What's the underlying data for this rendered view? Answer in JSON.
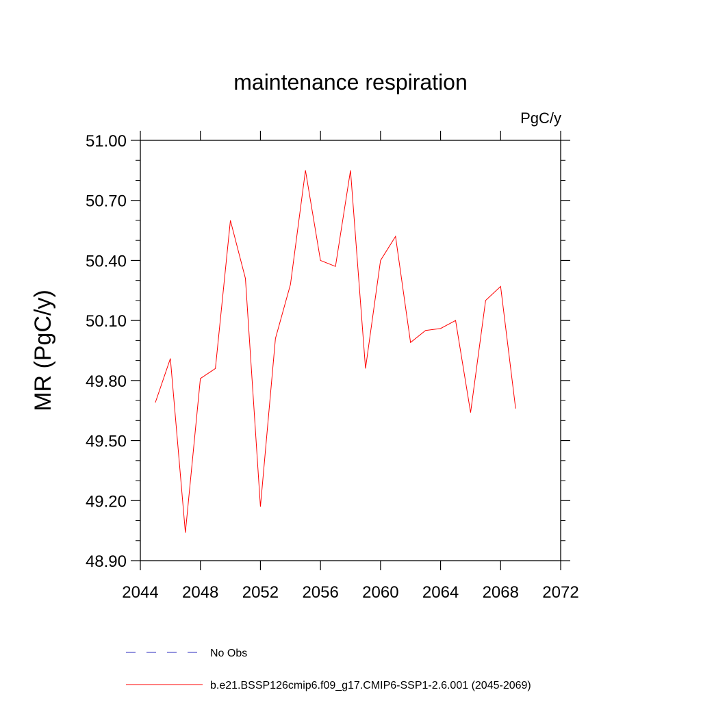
{
  "chart_data": {
    "type": "line",
    "title": "maintenance respiration",
    "units": "PgC/y",
    "ylabel": "MR  (PgC/y)",
    "xlim": [
      2044,
      2072
    ],
    "ylim": [
      48.9,
      51.0
    ],
    "x_ticks": [
      "2044",
      "2048",
      "2052",
      "2056",
      "2060",
      "2064",
      "2068",
      "2072"
    ],
    "y_ticks": [
      "51.00",
      "50.70",
      "50.40",
      "50.10",
      "49.80",
      "49.50",
      "49.20",
      "48.90"
    ],
    "x_tick_values": [
      2044,
      2048,
      2052,
      2056,
      2060,
      2064,
      2068,
      2072
    ],
    "y_tick_values": [
      51.0,
      50.7,
      50.4,
      50.1,
      49.8,
      49.5,
      49.2,
      48.9
    ],
    "grid": false,
    "legend_position": "bottom",
    "series": [
      {
        "name": "b.e21.BSSP126cmip6.f09_g17.CMIP6-SSP1-2.6.001 (2045-2069)",
        "color": "#ff0000",
        "style": "solid",
        "x": [
          2045,
          2046,
          2047,
          2048,
          2049,
          2050,
          2051,
          2052,
          2053,
          2054,
          2055,
          2056,
          2057,
          2058,
          2059,
          2060,
          2061,
          2062,
          2063,
          2064,
          2065,
          2066,
          2067,
          2068,
          2069
        ],
        "y": [
          49.69,
          49.91,
          49.04,
          49.81,
          49.86,
          50.6,
          50.31,
          49.17,
          50.01,
          50.28,
          50.85,
          50.4,
          50.37,
          50.85,
          49.86,
          50.4,
          50.52,
          49.99,
          50.05,
          50.06,
          50.1,
          49.64,
          50.2,
          50.27,
          49.66
        ]
      }
    ],
    "legend": [
      {
        "label": "No Obs",
        "color": "#5555cc",
        "style": "dashed"
      },
      {
        "label": "b.e21.BSSP126cmip6.f09_g17.CMIP6-SSP1-2.6.001 (2045-2069)",
        "color": "#ff0000",
        "style": "solid"
      }
    ]
  }
}
